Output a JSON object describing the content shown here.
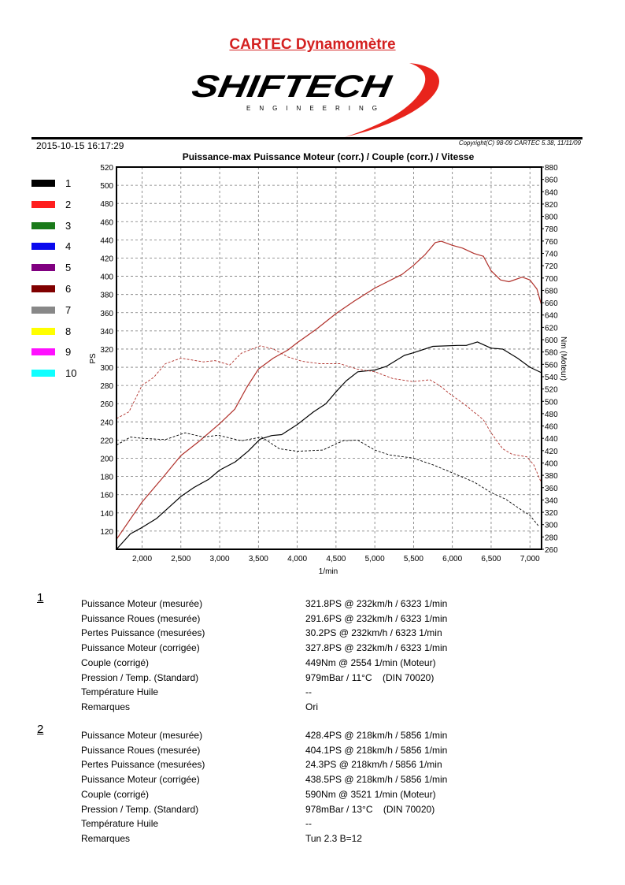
{
  "header": {
    "title": "CARTEC Dynamomètre",
    "logo": {
      "brand": "SHIFTECH",
      "tagline": "ENGINEERING"
    },
    "date": "2015-10-15 16:17:29",
    "copyright": "Copyright(C) 98-09 CARTEC 5.38, 11/11/09"
  },
  "legend": [
    {
      "label": "1",
      "color": "#000000"
    },
    {
      "label": "2",
      "color": "#ff1e1e"
    },
    {
      "label": "3",
      "color": "#1a7a1a"
    },
    {
      "label": "4",
      "color": "#0a0aee"
    },
    {
      "label": "5",
      "color": "#800080"
    },
    {
      "label": "6",
      "color": "#800000"
    },
    {
      "label": "7",
      "color": "#888888"
    },
    {
      "label": "8",
      "color": "#ffff00"
    },
    {
      "label": "9",
      "color": "#ff10ff"
    },
    {
      "label": "10",
      "color": "#10ffff"
    }
  ],
  "chart_data": {
    "type": "line",
    "title": "Puissance-max Puissance Moteur (corr.) / Couple (corr.) / Vitesse",
    "xlabel": "1/min",
    "ylabel": "PS",
    "ylabel_right": "Nm (Moteur)",
    "xlim": [
      1670,
      7150
    ],
    "ylim": [
      100,
      520
    ],
    "ylim_right": [
      260,
      880
    ],
    "x_ticks": [
      "2,000",
      "2,500",
      "3,000",
      "3,500",
      "4,000",
      "4,500",
      "5,000",
      "5,500",
      "6,000",
      "6,500",
      "7,000"
    ],
    "y_ticks": [
      120,
      140,
      160,
      180,
      200,
      220,
      240,
      260,
      280,
      300,
      320,
      340,
      360,
      380,
      400,
      420,
      440,
      460,
      480,
      500,
      520
    ],
    "y_ticks_right": [
      260,
      280,
      300,
      320,
      340,
      360,
      380,
      400,
      420,
      440,
      460,
      480,
      500,
      520,
      540,
      560,
      580,
      600,
      620,
      640,
      660,
      680,
      700,
      720,
      740,
      760,
      780,
      800,
      820,
      840,
      860,
      880
    ],
    "grid": true,
    "series": [
      {
        "run": "1",
        "quantity": "Puissance (PS)",
        "axis": "left",
        "style": "solid",
        "color": "#000000",
        "x": [
          1670,
          1850,
          2000,
          2190,
          2500,
          2670,
          2860,
          3000,
          3200,
          3370,
          3520,
          3670,
          3800,
          4000,
          4210,
          4370,
          4500,
          4630,
          4780,
          5000,
          5150,
          5380,
          5500,
          5750,
          6070,
          6180,
          6323,
          6500,
          6650,
          6840,
          7000,
          7150
        ],
        "y": [
          100,
          117,
          124,
          134,
          158,
          168,
          177,
          187,
          196,
          208,
          221,
          225,
          226,
          237,
          251,
          260,
          273,
          285,
          295,
          297,
          301,
          313,
          316,
          323,
          324,
          324,
          327.8,
          321,
          320,
          310,
          300,
          294
        ]
      },
      {
        "run": "2",
        "quantity": "Puissance (PS)",
        "axis": "left",
        "style": "solid",
        "color": "#b0302a",
        "x": [
          1670,
          2000,
          2260,
          2500,
          2740,
          3000,
          3195,
          3350,
          3500,
          3690,
          3880,
          4000,
          4250,
          4500,
          4740,
          5000,
          5350,
          5500,
          5650,
          5780,
          5856,
          6000,
          6130,
          6280,
          6400,
          6500,
          6620,
          6730,
          6900,
          7000,
          7090,
          7150
        ],
        "y": [
          111,
          152,
          178,
          203,
          219,
          238,
          254,
          278,
          298,
          310,
          319,
          327,
          342,
          359,
          373,
          387,
          402,
          412,
          424,
          437,
          438.5,
          434,
          431,
          425,
          422,
          406,
          396,
          394,
          399,
          396,
          386,
          368
        ]
      },
      {
        "run": "1",
        "quantity": "Couple (Nm)",
        "axis": "right",
        "style": "dashed",
        "color": "#000000",
        "x": [
          1670,
          1850,
          2000,
          2300,
          2554,
          2790,
          2980,
          3280,
          3540,
          3770,
          4000,
          4330,
          4590,
          4780,
          5000,
          5190,
          5490,
          5750,
          6000,
          6280,
          6500,
          6690,
          6840,
          7000,
          7110
        ],
        "y": [
          429,
          442,
          440,
          438,
          449,
          442,
          445,
          436,
          442,
          423,
          419,
          421,
          436,
          437,
          421,
          413,
          408,
          397,
          384,
          369,
          352,
          341,
          328,
          315,
          298
        ]
      },
      {
        "run": "2",
        "quantity": "Couple (Nm)",
        "axis": "right",
        "style": "dashed",
        "color": "#b0302a",
        "x": [
          1670,
          1830,
          2000,
          2150,
          2300,
          2500,
          2790,
          2940,
          3130,
          3280,
          3521,
          3690,
          3880,
          4060,
          4290,
          4550,
          4780,
          5000,
          5230,
          5490,
          5710,
          5830,
          5980,
          6170,
          6400,
          6500,
          6650,
          6770,
          6960,
          7050,
          7150
        ],
        "y": [
          472,
          483,
          526,
          539,
          561,
          570,
          564,
          566,
          559,
          578,
          590,
          585,
          572,
          565,
          561,
          561,
          552,
          548,
          537,
          532,
          535,
          526,
          511,
          494,
          470,
          449,
          423,
          414,
          410,
          397,
          367
        ]
      }
    ]
  },
  "results": [
    {
      "run": "1",
      "rows": [
        {
          "label": "Puissance Moteur (mesurée)",
          "value": "321.8PS @ 232km/h / 6323 1/min"
        },
        {
          "label": "Puissance Roues (mesurée)",
          "value": "291.6PS @ 232km/h / 6323 1/min"
        },
        {
          "label": "Pertes Puissance (mesurées)",
          "value": "30.2PS @ 232km/h / 6323 1/min"
        },
        {
          "label": "Puissance Moteur (corrigée)",
          "value": "327.8PS @ 232km/h / 6323 1/min"
        },
        {
          "label": "Couple (corrigé)",
          "value": "449Nm @ 2554 1/min (Moteur)"
        },
        {
          "label": "Pression / Temp. (Standard)",
          "value": "979mBar / 11°C    (DIN 70020)"
        },
        {
          "label": "Température Huile",
          "value": "--"
        },
        {
          "label": "Remarques",
          "value": "Ori"
        }
      ]
    },
    {
      "run": "2",
      "rows": [
        {
          "label": "Puissance Moteur (mesurée)",
          "value": "428.4PS @ 218km/h / 5856 1/min"
        },
        {
          "label": "Puissance Roues (mesurée)",
          "value": "404.1PS @ 218km/h / 5856 1/min"
        },
        {
          "label": "Pertes Puissance (mesurées)",
          "value": "24.3PS @ 218km/h / 5856 1/min"
        },
        {
          "label": "Puissance Moteur (corrigée)",
          "value": "438.5PS @ 218km/h / 5856 1/min"
        },
        {
          "label": "Couple (corrigé)",
          "value": "590Nm @ 3521 1/min (Moteur)"
        },
        {
          "label": "Pression / Temp. (Standard)",
          "value": "978mBar / 13°C    (DIN 70020)"
        },
        {
          "label": "Température Huile",
          "value": "--"
        },
        {
          "label": "Remarques",
          "value": "Tun 2.3 B=12"
        }
      ]
    }
  ]
}
